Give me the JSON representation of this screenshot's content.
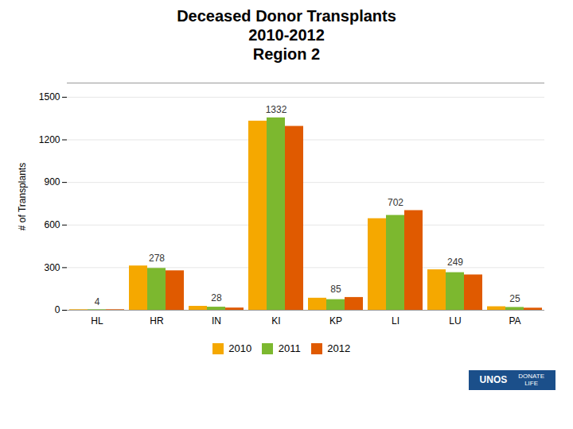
{
  "chart_data": {
    "type": "bar",
    "title": [
      "Deceased Donor Transplants",
      "2010-2012",
      "Region 2"
    ],
    "ylabel": "# of Transplants",
    "categories": [
      "HL",
      "HR",
      "IN",
      "KI",
      "KP",
      "LI",
      "LU",
      "PA"
    ],
    "series": [
      {
        "name": "2010",
        "color": "#F5A800",
        "values": [
          4,
          312,
          28,
          1332,
          85,
          645,
          285,
          25
        ]
      },
      {
        "name": "2011",
        "color": "#7CB82F",
        "values": [
          4,
          295,
          22,
          1355,
          75,
          668,
          265,
          20
        ]
      },
      {
        "name": "2012",
        "color": "#E05A00",
        "values": [
          4,
          278,
          16,
          1295,
          90,
          702,
          249,
          15
        ]
      }
    ],
    "annotations": [
      {
        "category": "HL",
        "value": 4
      },
      {
        "category": "HR",
        "value": 278
      },
      {
        "category": "IN",
        "value": 28
      },
      {
        "category": "KI",
        "value": 1332
      },
      {
        "category": "KP",
        "value": 85
      },
      {
        "category": "LI",
        "value": 702
      },
      {
        "category": "LU",
        "value": 249
      },
      {
        "category": "PA",
        "value": 25
      }
    ],
    "ylim": [
      0,
      1600
    ],
    "yticks": [
      0,
      300,
      600,
      900,
      1200,
      1500
    ],
    "grid": true,
    "legend": "bottom",
    "logo": {
      "texts": [
        "UNOS",
        "DONATE\nLIFE"
      ],
      "color": "#1B4F8A"
    }
  }
}
